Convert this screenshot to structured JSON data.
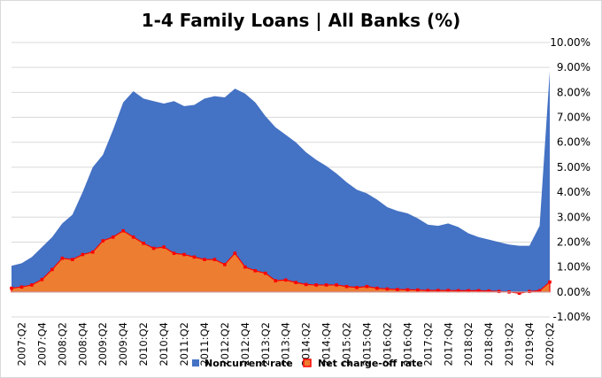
{
  "chart_data": {
    "type": "area",
    "title": "1-4 Family Loans | All Banks (%)",
    "xlabel": "",
    "ylabel": "",
    "ylim": [
      -1,
      10
    ],
    "y_ticks": [
      "-1.00%",
      "0.00%",
      "1.00%",
      "2.00%",
      "3.00%",
      "4.00%",
      "5.00%",
      "6.00%",
      "7.00%",
      "8.00%",
      "9.00%",
      "10.00%"
    ],
    "x_tick_labels": [
      "2007:Q2",
      "2007:Q4",
      "2008:Q2",
      "2008:Q4",
      "2009:Q2",
      "2009:Q4",
      "2010:Q2",
      "2010:Q4",
      "2011:Q2",
      "2011:Q4",
      "2012:Q2",
      "2012:Q4",
      "2013:Q2",
      "2013:Q4",
      "2014:Q2",
      "2014:Q4",
      "2015:Q2",
      "2015:Q4",
      "2016:Q2",
      "2016:Q4",
      "2017:Q2",
      "2017:Q4",
      "2018:Q2",
      "2018:Q4",
      "2019:Q2",
      "2019:Q4",
      "2020:Q2"
    ],
    "grid": true,
    "legend_position": "bottom",
    "x": [
      "2007:Q1",
      "2007:Q2",
      "2007:Q3",
      "2007:Q4",
      "2008:Q1",
      "2008:Q2",
      "2008:Q3",
      "2008:Q4",
      "2009:Q1",
      "2009:Q2",
      "2009:Q3",
      "2009:Q4",
      "2010:Q1",
      "2010:Q2",
      "2010:Q3",
      "2010:Q4",
      "2011:Q1",
      "2011:Q2",
      "2011:Q3",
      "2011:Q4",
      "2012:Q1",
      "2012:Q2",
      "2012:Q3",
      "2012:Q4",
      "2013:Q1",
      "2013:Q2",
      "2013:Q3",
      "2013:Q4",
      "2014:Q1",
      "2014:Q2",
      "2014:Q3",
      "2014:Q4",
      "2015:Q1",
      "2015:Q2",
      "2015:Q3",
      "2015:Q4",
      "2016:Q1",
      "2016:Q2",
      "2016:Q3",
      "2016:Q4",
      "2017:Q1",
      "2017:Q2",
      "2017:Q3",
      "2017:Q4",
      "2018:Q1",
      "2018:Q2",
      "2018:Q3",
      "2018:Q4",
      "2019:Q1",
      "2019:Q2",
      "2019:Q3",
      "2019:Q4",
      "2020:Q1",
      "2020:Q2"
    ],
    "series": [
      {
        "name": "Noncurrent rate",
        "color": "#4472c4",
        "values": [
          1.05,
          1.15,
          1.4,
          1.8,
          2.2,
          2.75,
          3.1,
          4.0,
          5.0,
          5.5,
          6.5,
          7.6,
          8.05,
          7.75,
          7.65,
          7.55,
          7.65,
          7.45,
          7.5,
          7.75,
          7.85,
          7.8,
          8.15,
          7.95,
          7.6,
          7.05,
          6.6,
          6.3,
          6.0,
          5.6,
          5.3,
          5.05,
          4.75,
          4.4,
          4.1,
          3.95,
          3.7,
          3.4,
          3.25,
          3.15,
          2.95,
          2.7,
          2.65,
          2.75,
          2.6,
          2.35,
          2.2,
          2.1,
          2.0,
          1.9,
          1.85,
          1.85,
          2.65,
          8.85
        ]
      },
      {
        "name": "Net charge-off rate",
        "color": "#ed7d31",
        "marker_color": "#ff0000",
        "values": [
          0.15,
          0.2,
          0.28,
          0.5,
          0.9,
          1.35,
          1.3,
          1.5,
          1.6,
          2.05,
          2.2,
          2.45,
          2.2,
          1.95,
          1.75,
          1.8,
          1.55,
          1.5,
          1.4,
          1.3,
          1.3,
          1.1,
          1.55,
          1.0,
          0.85,
          0.75,
          0.45,
          0.48,
          0.38,
          0.3,
          0.28,
          0.28,
          0.28,
          0.22,
          0.18,
          0.22,
          0.15,
          0.12,
          0.1,
          0.09,
          0.08,
          0.06,
          0.06,
          0.06,
          0.05,
          0.05,
          0.05,
          0.04,
          0.02,
          0.0,
          -0.05,
          0.02,
          0.05,
          0.4
        ]
      }
    ]
  }
}
